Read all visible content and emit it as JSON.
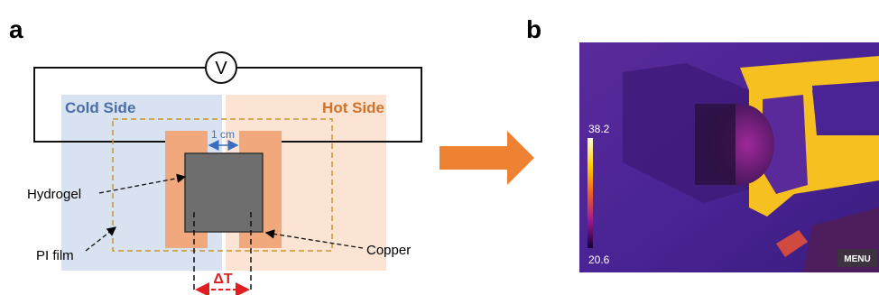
{
  "panel_a": {
    "label": "a",
    "voltmeter": "V",
    "cold_side": "Cold Side",
    "hot_side": "Hot Side",
    "gap": "1 cm",
    "hydrogel": "Hydrogel",
    "pi_film": "PI film",
    "copper": "Copper",
    "delta_t": "ΔT"
  },
  "panel_b": {
    "label": "b",
    "scale_max": "38.2",
    "scale_min": "20.6",
    "menu": "MENU"
  }
}
